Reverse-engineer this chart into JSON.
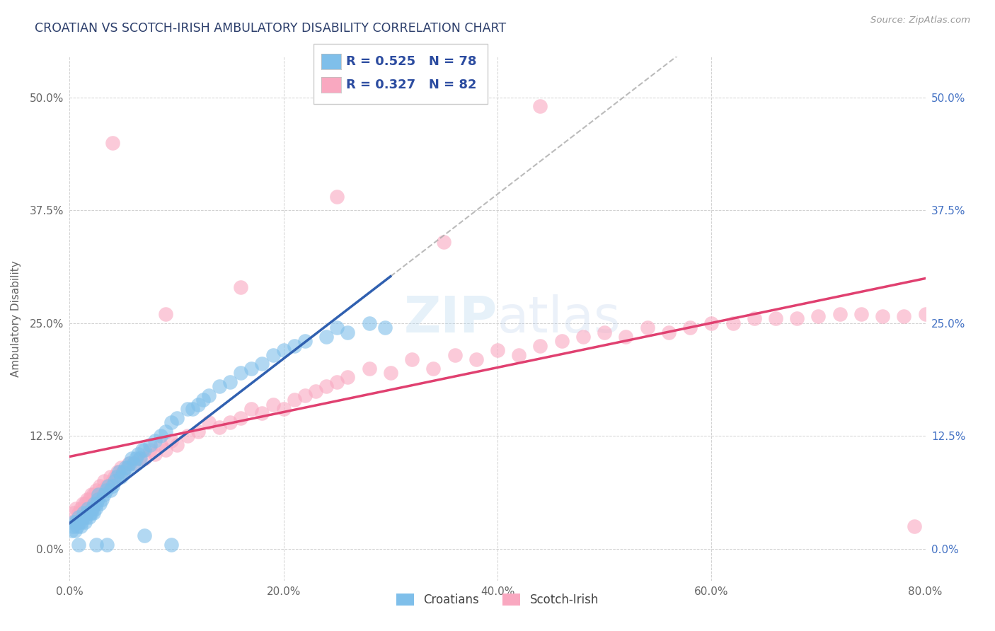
{
  "title": "CROATIAN VS SCOTCH-IRISH AMBULATORY DISABILITY CORRELATION CHART",
  "source": "Source: ZipAtlas.com",
  "ylabel": "Ambulatory Disability",
  "xlim": [
    0.0,
    0.8
  ],
  "ylim": [
    -0.035,
    0.545
  ],
  "x_tick_vals": [
    0.0,
    0.2,
    0.4,
    0.6,
    0.8
  ],
  "y_tick_vals": [
    0.0,
    0.125,
    0.25,
    0.375,
    0.5
  ],
  "xlabel_ticks": [
    "0.0%",
    "20.0%",
    "40.0%",
    "60.0%",
    "80.0%"
  ],
  "ylabel_ticks": [
    "0.0%",
    "12.5%",
    "25.0%",
    "37.5%",
    "50.0%"
  ],
  "legend_r1": "R = 0.525",
  "legend_n1": "N = 78",
  "legend_r2": "R = 0.327",
  "legend_n2": "N = 82",
  "blue_color": "#7fbfea",
  "pink_color": "#f9a8c0",
  "trend_blue": "#3060b0",
  "trend_pink": "#e04070",
  "trend_gray": "#aaaaaa",
  "background": "#ffffff",
  "title_color": "#2c3e6b",
  "source_color": "#999999",
  "croatians_x": [
    0.002,
    0.003,
    0.004,
    0.005,
    0.006,
    0.007,
    0.008,
    0.009,
    0.01,
    0.011,
    0.012,
    0.013,
    0.014,
    0.015,
    0.016,
    0.017,
    0.018,
    0.019,
    0.02,
    0.021,
    0.022,
    0.023,
    0.024,
    0.025,
    0.026,
    0.027,
    0.028,
    0.03,
    0.032,
    0.034,
    0.036,
    0.038,
    0.04,
    0.042,
    0.044,
    0.046,
    0.048,
    0.05,
    0.052,
    0.054,
    0.056,
    0.058,
    0.06,
    0.062,
    0.064,
    0.066,
    0.068,
    0.07,
    0.075,
    0.08,
    0.085,
    0.09,
    0.095,
    0.1,
    0.11,
    0.115,
    0.12,
    0.125,
    0.13,
    0.14,
    0.15,
    0.16,
    0.17,
    0.18,
    0.19,
    0.2,
    0.21,
    0.22,
    0.24,
    0.25,
    0.26,
    0.28,
    0.295,
    0.07,
    0.025,
    0.008,
    0.035,
    0.095
  ],
  "croatians_y": [
    0.02,
    0.025,
    0.03,
    0.02,
    0.03,
    0.025,
    0.035,
    0.03,
    0.025,
    0.03,
    0.035,
    0.04,
    0.03,
    0.035,
    0.04,
    0.045,
    0.035,
    0.04,
    0.04,
    0.045,
    0.04,
    0.05,
    0.045,
    0.05,
    0.055,
    0.06,
    0.05,
    0.055,
    0.06,
    0.065,
    0.07,
    0.065,
    0.07,
    0.075,
    0.08,
    0.085,
    0.08,
    0.085,
    0.09,
    0.09,
    0.095,
    0.1,
    0.095,
    0.1,
    0.105,
    0.1,
    0.11,
    0.11,
    0.115,
    0.12,
    0.125,
    0.13,
    0.14,
    0.145,
    0.155,
    0.155,
    0.16,
    0.165,
    0.17,
    0.18,
    0.185,
    0.195,
    0.2,
    0.205,
    0.215,
    0.22,
    0.225,
    0.23,
    0.235,
    0.245,
    0.24,
    0.25,
    0.245,
    0.015,
    0.005,
    0.005,
    0.005,
    0.005
  ],
  "scotchirish_x": [
    0.002,
    0.004,
    0.006,
    0.008,
    0.01,
    0.012,
    0.014,
    0.016,
    0.018,
    0.02,
    0.022,
    0.025,
    0.028,
    0.03,
    0.032,
    0.035,
    0.038,
    0.04,
    0.042,
    0.045,
    0.048,
    0.05,
    0.055,
    0.06,
    0.065,
    0.07,
    0.075,
    0.08,
    0.085,
    0.09,
    0.095,
    0.1,
    0.11,
    0.12,
    0.13,
    0.14,
    0.15,
    0.16,
    0.17,
    0.18,
    0.19,
    0.2,
    0.21,
    0.22,
    0.23,
    0.24,
    0.25,
    0.26,
    0.28,
    0.3,
    0.32,
    0.34,
    0.36,
    0.38,
    0.4,
    0.42,
    0.44,
    0.46,
    0.48,
    0.5,
    0.52,
    0.54,
    0.56,
    0.58,
    0.6,
    0.62,
    0.64,
    0.66,
    0.68,
    0.7,
    0.72,
    0.74,
    0.76,
    0.78,
    0.8,
    0.16,
    0.25,
    0.35,
    0.44,
    0.04,
    0.09,
    0.79
  ],
  "scotchirish_y": [
    0.03,
    0.04,
    0.045,
    0.04,
    0.045,
    0.05,
    0.05,
    0.055,
    0.055,
    0.06,
    0.06,
    0.065,
    0.07,
    0.065,
    0.075,
    0.07,
    0.08,
    0.075,
    0.08,
    0.085,
    0.09,
    0.085,
    0.095,
    0.095,
    0.1,
    0.1,
    0.11,
    0.105,
    0.115,
    0.11,
    0.12,
    0.115,
    0.125,
    0.13,
    0.14,
    0.135,
    0.14,
    0.145,
    0.155,
    0.15,
    0.16,
    0.155,
    0.165,
    0.17,
    0.175,
    0.18,
    0.185,
    0.19,
    0.2,
    0.195,
    0.21,
    0.2,
    0.215,
    0.21,
    0.22,
    0.215,
    0.225,
    0.23,
    0.235,
    0.24,
    0.235,
    0.245,
    0.24,
    0.245,
    0.25,
    0.25,
    0.255,
    0.255,
    0.255,
    0.258,
    0.26,
    0.26,
    0.258,
    0.258,
    0.26,
    0.29,
    0.39,
    0.34,
    0.49,
    0.45,
    0.26,
    0.025
  ]
}
